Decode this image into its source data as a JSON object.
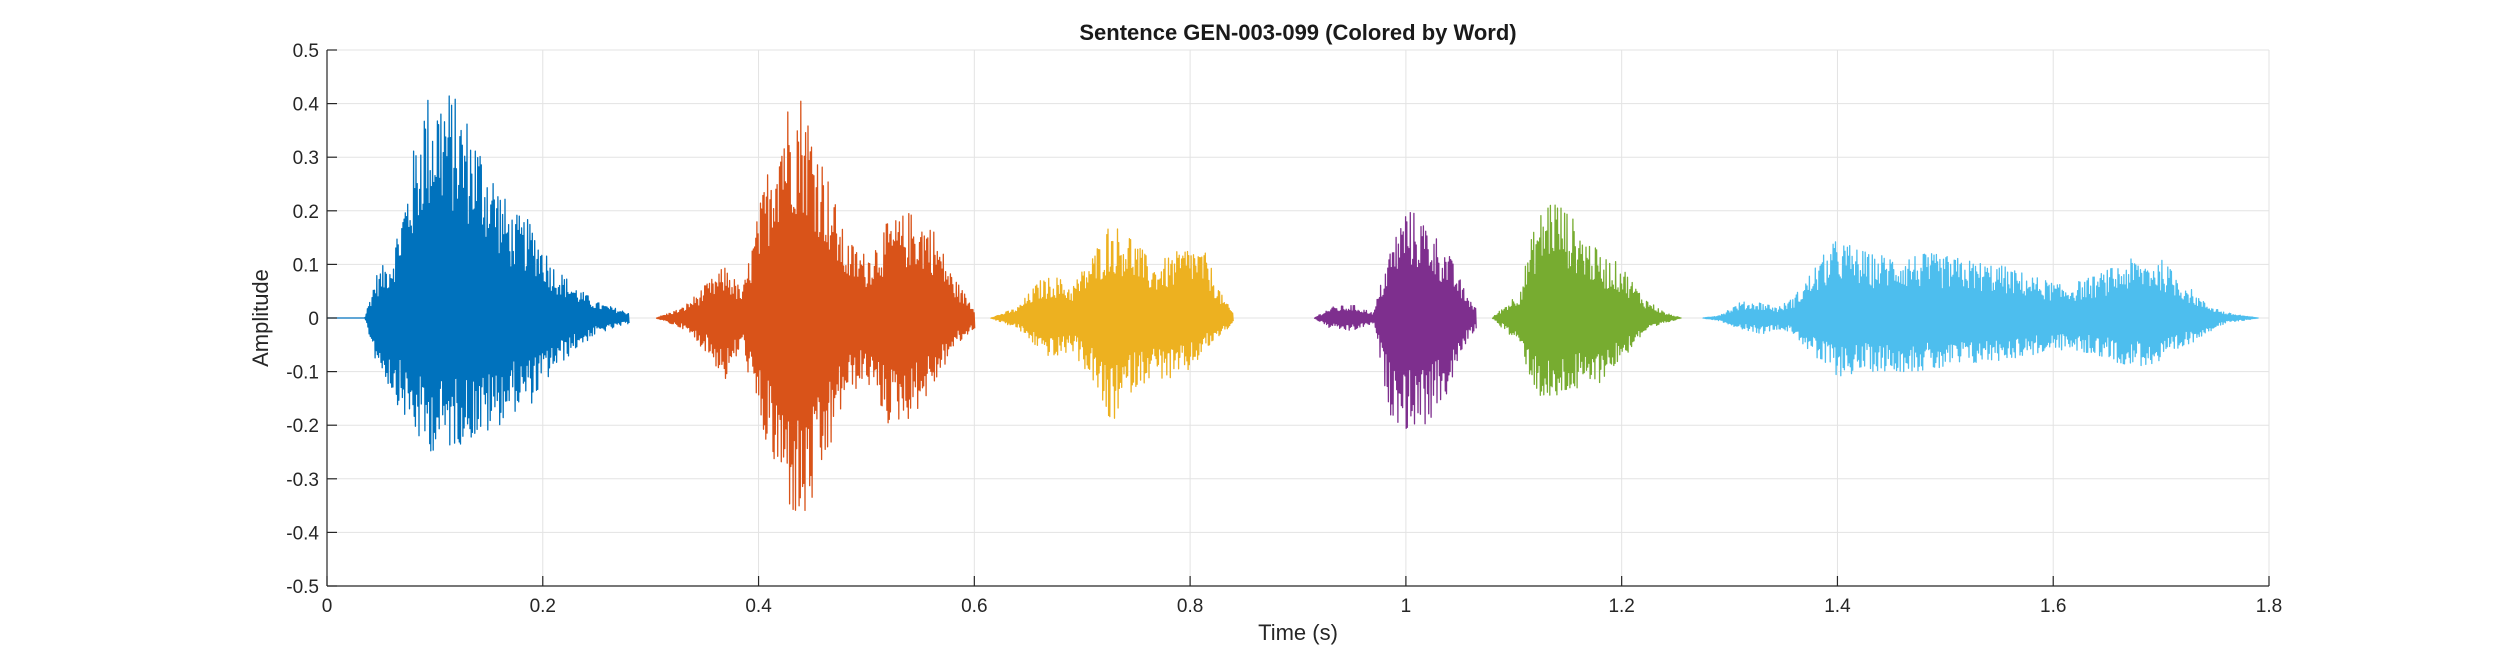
{
  "chart_data": {
    "type": "line",
    "title": "Sentence GEN-003-099 (Colored by Word)",
    "xlabel": "Time (s)",
    "ylabel": "Amplitude",
    "xlim": [
      0,
      1.8
    ],
    "ylim": [
      -0.5,
      0.5
    ],
    "xticks": [
      0,
      0.2,
      0.4,
      0.6,
      0.8,
      1,
      1.2,
      1.4,
      1.6,
      1.8
    ],
    "xtick_labels": [
      "0",
      "0.2",
      "0.4",
      "0.6",
      "0.8",
      "1",
      "1.2",
      "1.4",
      "1.6",
      "1.8"
    ],
    "yticks": [
      0.5,
      0.4,
      0.3,
      0.2,
      0.1,
      0,
      -0.1,
      -0.2,
      -0.3,
      -0.4,
      -0.5
    ],
    "ytick_labels": [
      "0.5",
      "0.4",
      "0.3",
      "0.2",
      "0.1",
      "0",
      "-0.1",
      "-0.2",
      "-0.3",
      "-0.4",
      "-0.5"
    ],
    "grid": true,
    "legend": "none",
    "series": [
      {
        "color": "#0072BD",
        "envelope": [
          [
            0.0,
            0
          ],
          [
            0.035,
            0.0
          ],
          [
            0.045,
            0.08
          ],
          [
            0.06,
            0.12
          ],
          [
            0.075,
            0.26
          ],
          [
            0.09,
            0.42
          ],
          [
            0.11,
            0.44
          ],
          [
            0.13,
            0.38
          ],
          [
            0.15,
            0.3
          ],
          [
            0.17,
            0.2
          ],
          [
            0.19,
            0.18
          ],
          [
            0.21,
            0.1
          ],
          [
            0.23,
            0.06
          ],
          [
            0.25,
            0.03
          ],
          [
            0.28,
            0.01
          ]
        ],
        "neg_envelope": [
          [
            0.0,
            0
          ],
          [
            0.035,
            0.0
          ],
          [
            0.045,
            -0.08
          ],
          [
            0.06,
            -0.14
          ],
          [
            0.075,
            -0.2
          ],
          [
            0.09,
            -0.25
          ],
          [
            0.11,
            -0.25
          ],
          [
            0.13,
            -0.23
          ],
          [
            0.15,
            -0.22
          ],
          [
            0.17,
            -0.18
          ],
          [
            0.19,
            -0.16
          ],
          [
            0.21,
            -0.1
          ],
          [
            0.23,
            -0.06
          ],
          [
            0.25,
            -0.03
          ],
          [
            0.28,
            -0.01
          ]
        ]
      },
      {
        "color": "#D95319",
        "envelope": [
          [
            0.305,
            0.0
          ],
          [
            0.33,
            0.02
          ],
          [
            0.35,
            0.06
          ],
          [
            0.37,
            0.1
          ],
          [
            0.385,
            0.05
          ],
          [
            0.4,
            0.2
          ],
          [
            0.42,
            0.4
          ],
          [
            0.44,
            0.43
          ],
          [
            0.46,
            0.3
          ],
          [
            0.48,
            0.15
          ],
          [
            0.5,
            0.12
          ],
          [
            0.52,
            0.18
          ],
          [
            0.54,
            0.2
          ],
          [
            0.56,
            0.18
          ],
          [
            0.58,
            0.08
          ],
          [
            0.6,
            0.02
          ]
        ],
        "neg_envelope": [
          [
            0.305,
            0.0
          ],
          [
            0.33,
            -0.02
          ],
          [
            0.35,
            -0.06
          ],
          [
            0.37,
            -0.12
          ],
          [
            0.385,
            -0.05
          ],
          [
            0.4,
            -0.2
          ],
          [
            0.42,
            -0.32
          ],
          [
            0.44,
            -0.41
          ],
          [
            0.46,
            -0.3
          ],
          [
            0.48,
            -0.15
          ],
          [
            0.5,
            -0.12
          ],
          [
            0.52,
            -0.2
          ],
          [
            0.54,
            -0.19
          ],
          [
            0.56,
            -0.14
          ],
          [
            0.58,
            -0.06
          ],
          [
            0.6,
            -0.02
          ]
        ]
      },
      {
        "color": "#EDB120",
        "envelope": [
          [
            0.615,
            0.0
          ],
          [
            0.64,
            0.02
          ],
          [
            0.66,
            0.07
          ],
          [
            0.675,
            0.08
          ],
          [
            0.69,
            0.06
          ],
          [
            0.71,
            0.12
          ],
          [
            0.725,
            0.18
          ],
          [
            0.745,
            0.16
          ],
          [
            0.765,
            0.1
          ],
          [
            0.785,
            0.12
          ],
          [
            0.8,
            0.14
          ],
          [
            0.815,
            0.12
          ],
          [
            0.83,
            0.04
          ],
          [
            0.84,
            0.01
          ]
        ],
        "neg_envelope": [
          [
            0.615,
            0.0
          ],
          [
            0.64,
            -0.02
          ],
          [
            0.66,
            -0.06
          ],
          [
            0.675,
            -0.08
          ],
          [
            0.69,
            -0.06
          ],
          [
            0.71,
            -0.12
          ],
          [
            0.725,
            -0.21
          ],
          [
            0.745,
            -0.14
          ],
          [
            0.765,
            -0.11
          ],
          [
            0.785,
            -0.12
          ],
          [
            0.8,
            -0.1
          ],
          [
            0.815,
            -0.06
          ],
          [
            0.83,
            -0.03
          ],
          [
            0.84,
            -0.01
          ]
        ]
      },
      {
        "color": "#7E2F8E",
        "envelope": [
          [
            0.915,
            0.0
          ],
          [
            0.93,
            0.02
          ],
          [
            0.95,
            0.025
          ],
          [
            0.97,
            0.01
          ],
          [
            0.985,
            0.13
          ],
          [
            1.0,
            0.21
          ],
          [
            1.02,
            0.18
          ],
          [
            1.04,
            0.12
          ],
          [
            1.055,
            0.05
          ],
          [
            1.065,
            0.02
          ]
        ],
        "neg_envelope": [
          [
            0.915,
            0.0
          ],
          [
            0.93,
            -0.02
          ],
          [
            0.95,
            -0.025
          ],
          [
            0.97,
            -0.01
          ],
          [
            0.985,
            -0.18
          ],
          [
            1.0,
            -0.21
          ],
          [
            1.02,
            -0.2
          ],
          [
            1.04,
            -0.14
          ],
          [
            1.055,
            -0.05
          ],
          [
            1.065,
            -0.02
          ]
        ]
      },
      {
        "color": "#77AC30",
        "envelope": [
          [
            1.08,
            0.0
          ],
          [
            1.09,
            0.02
          ],
          [
            1.105,
            0.05
          ],
          [
            1.12,
            0.18
          ],
          [
            1.135,
            0.24
          ],
          [
            1.15,
            0.2
          ],
          [
            1.165,
            0.16
          ],
          [
            1.18,
            0.12
          ],
          [
            1.2,
            0.1
          ],
          [
            1.22,
            0.04
          ],
          [
            1.24,
            0.01
          ],
          [
            1.255,
            0.0
          ]
        ],
        "neg_envelope": [
          [
            1.08,
            0.0
          ],
          [
            1.09,
            -0.02
          ],
          [
            1.105,
            -0.05
          ],
          [
            1.12,
            -0.14
          ],
          [
            1.135,
            -0.17
          ],
          [
            1.15,
            -0.14
          ],
          [
            1.165,
            -0.14
          ],
          [
            1.18,
            -0.12
          ],
          [
            1.2,
            -0.08
          ],
          [
            1.22,
            -0.03
          ],
          [
            1.24,
            -0.01
          ],
          [
            1.255,
            0.0
          ]
        ]
      },
      {
        "color": "#4DBEEE",
        "envelope": [
          [
            1.275,
            0.0
          ],
          [
            1.29,
            0.005
          ],
          [
            1.31,
            0.03
          ],
          [
            1.33,
            0.03
          ],
          [
            1.345,
            0.02
          ],
          [
            1.36,
            0.04
          ],
          [
            1.38,
            0.1
          ],
          [
            1.4,
            0.15
          ],
          [
            1.43,
            0.12
          ],
          [
            1.46,
            0.12
          ],
          [
            1.49,
            0.12
          ],
          [
            1.52,
            0.11
          ],
          [
            1.55,
            0.1
          ],
          [
            1.58,
            0.08
          ],
          [
            1.61,
            0.06
          ],
          [
            1.64,
            0.08
          ],
          [
            1.67,
            0.11
          ],
          [
            1.7,
            0.11
          ],
          [
            1.72,
            0.07
          ],
          [
            1.74,
            0.03
          ],
          [
            1.76,
            0.01
          ],
          [
            1.79,
            0.0
          ]
        ],
        "neg_envelope": [
          [
            1.275,
            0.0
          ],
          [
            1.29,
            -0.005
          ],
          [
            1.31,
            -0.02
          ],
          [
            1.33,
            -0.03
          ],
          [
            1.345,
            -0.02
          ],
          [
            1.36,
            -0.03
          ],
          [
            1.38,
            -0.08
          ],
          [
            1.4,
            -0.11
          ],
          [
            1.43,
            -0.1
          ],
          [
            1.46,
            -0.1
          ],
          [
            1.49,
            -0.1
          ],
          [
            1.52,
            -0.09
          ],
          [
            1.55,
            -0.08
          ],
          [
            1.58,
            -0.07
          ],
          [
            1.61,
            -0.06
          ],
          [
            1.64,
            -0.07
          ],
          [
            1.67,
            -0.09
          ],
          [
            1.7,
            -0.09
          ],
          [
            1.72,
            -0.06
          ],
          [
            1.74,
            -0.03
          ],
          [
            1.76,
            -0.01
          ],
          [
            1.79,
            0.0
          ]
        ]
      }
    ]
  }
}
